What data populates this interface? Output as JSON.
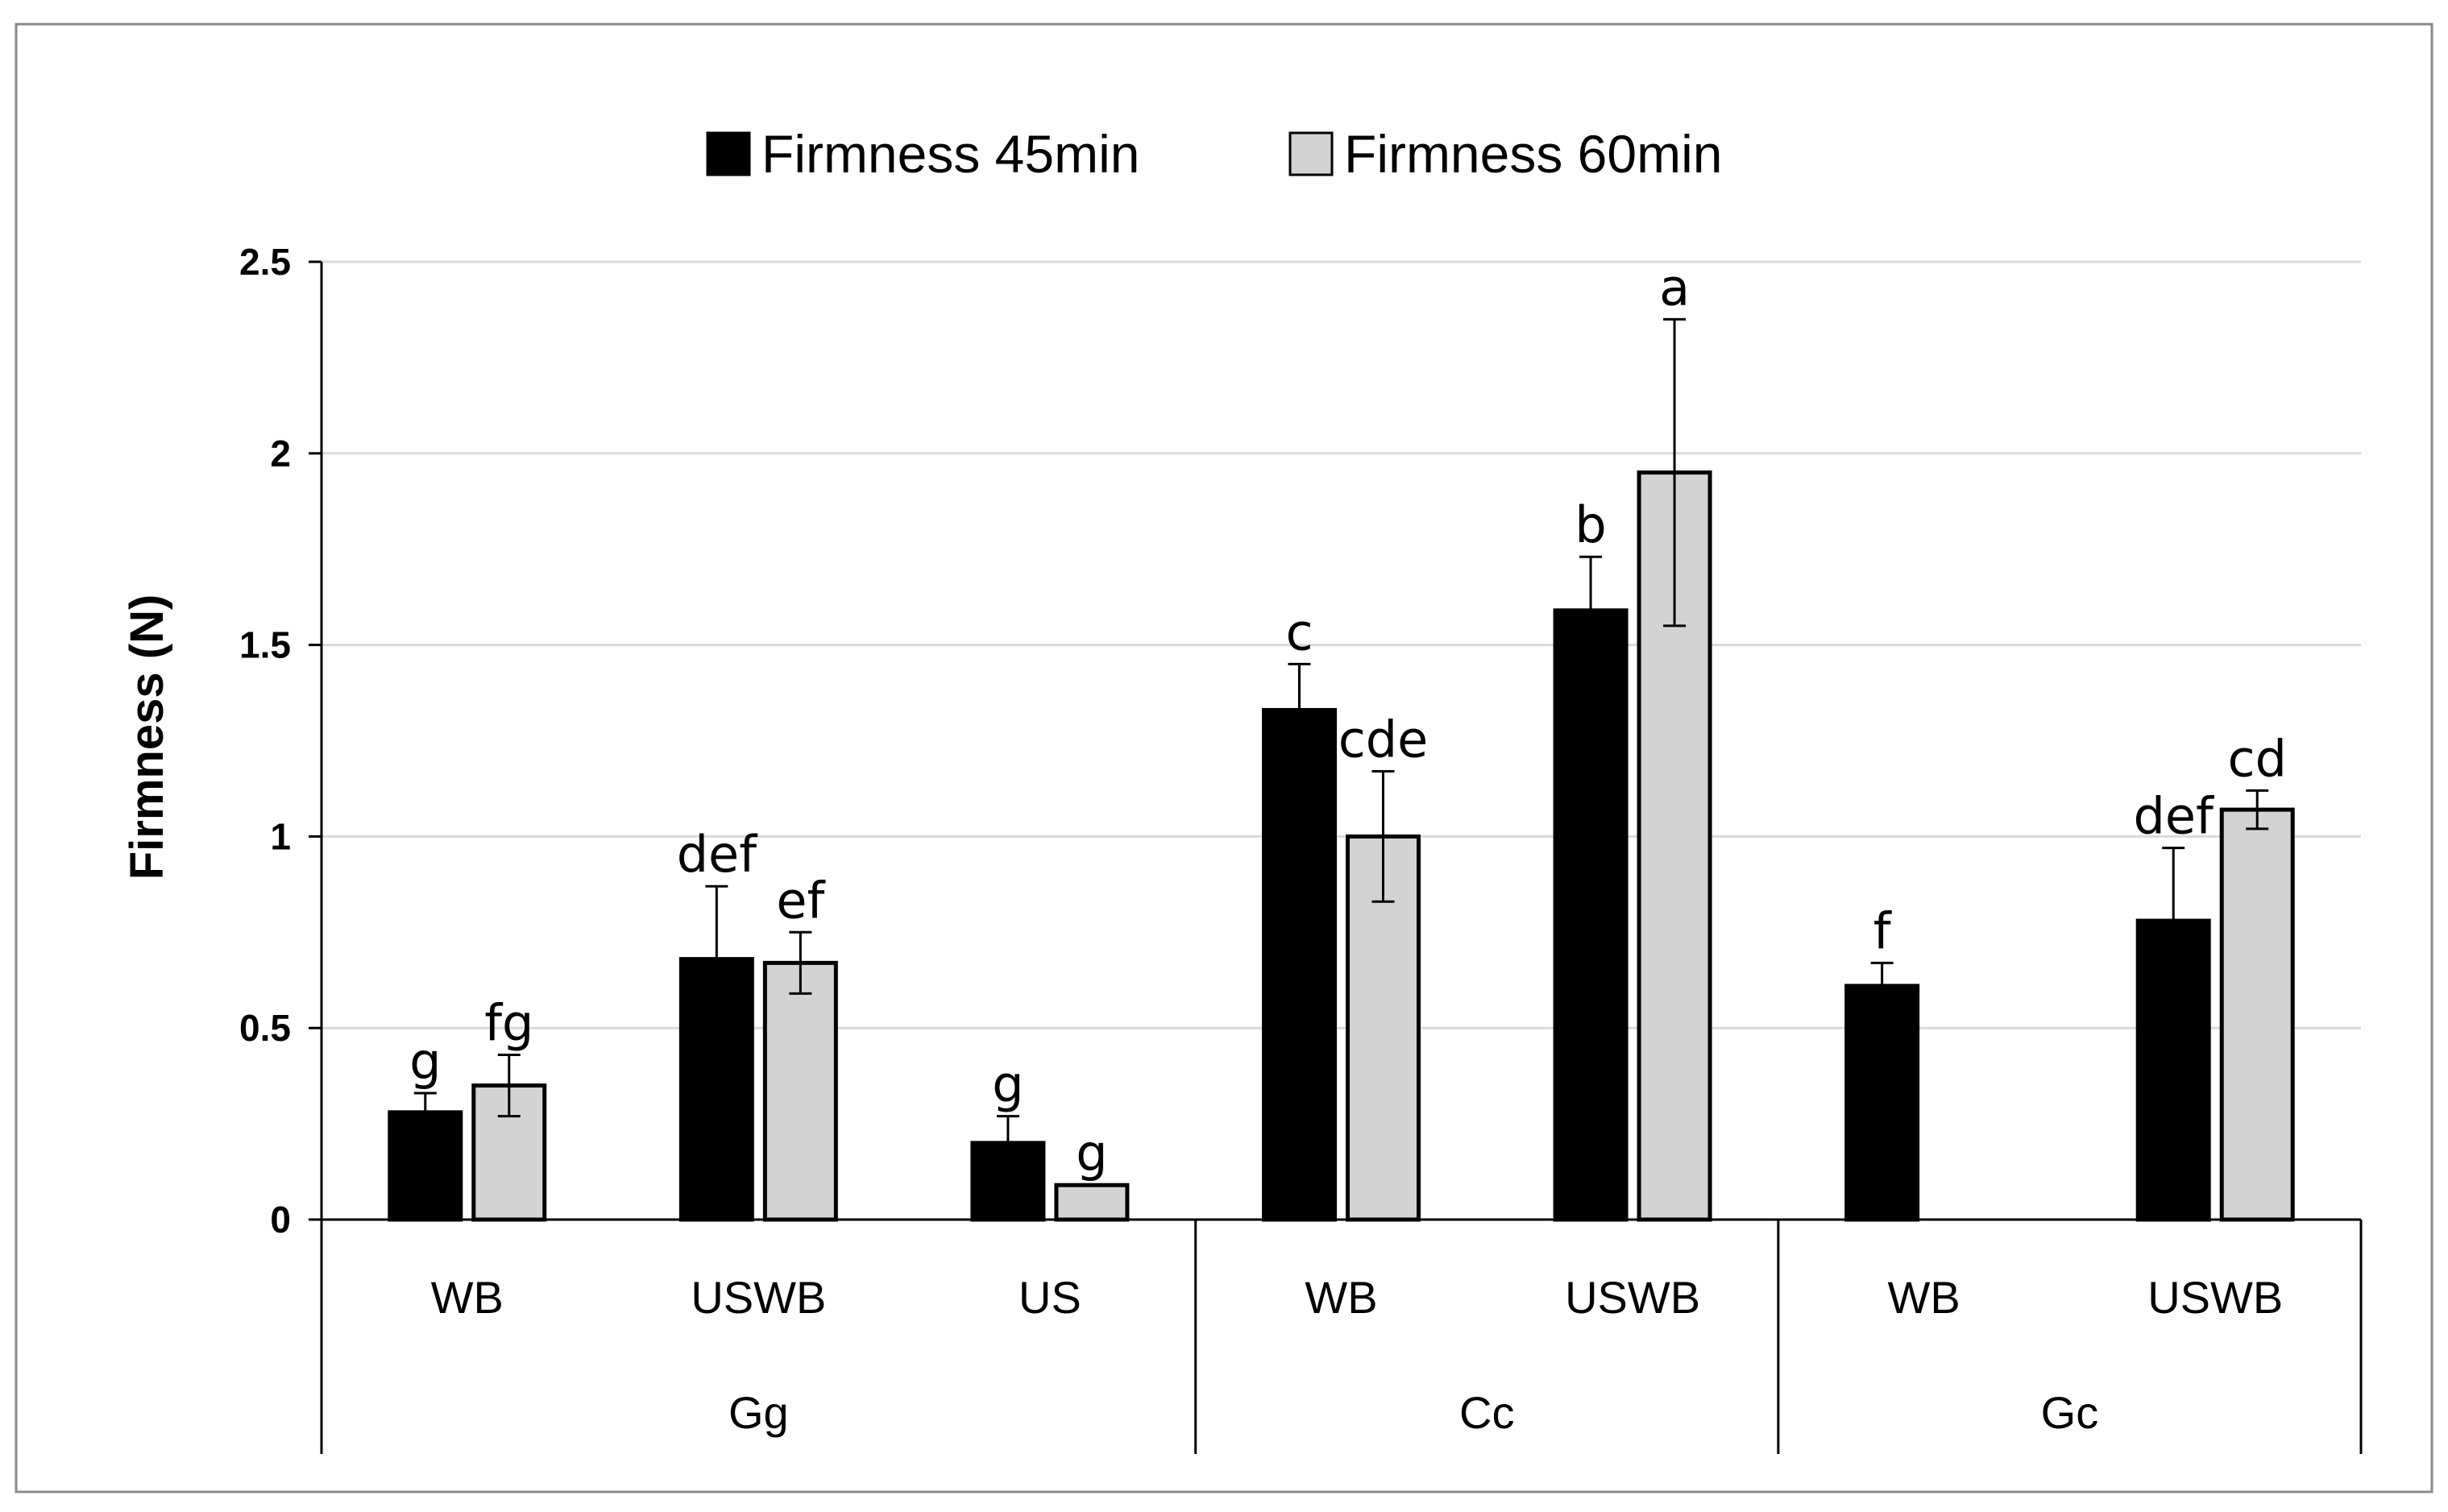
{
  "chart_data": {
    "type": "bar",
    "title": "",
    "xlabel": "",
    "ylabel": "Firmness (N)",
    "ylim": [
      0,
      2.5
    ],
    "yticks": [
      "0",
      "0.5",
      "1",
      "1.5",
      "2",
      "2.5"
    ],
    "ytick_values": [
      0,
      0.5,
      1,
      1.5,
      2,
      2.5
    ],
    "grid": true,
    "legend_position": "top-center",
    "groups": [
      {
        "name": "Gg",
        "categories": [
          "WB",
          "USWB",
          "US"
        ]
      },
      {
        "name": "Cc",
        "categories": [
          "WB",
          "USWB"
        ]
      },
      {
        "name": "Gc",
        "categories": [
          "WB",
          "USWB"
        ]
      }
    ],
    "categories": [
      "WB",
      "USWB",
      "US",
      "WB",
      "USWB",
      "WB",
      "USWB"
    ],
    "series": [
      {
        "name": "Firmness 45min",
        "color": "#000000",
        "values": [
          0.28,
          0.68,
          0.2,
          1.33,
          1.59,
          0.61,
          0.78
        ],
        "errors": [
          0.05,
          0.19,
          0.07,
          0.12,
          0.14,
          0.06,
          0.19
        ],
        "letters": [
          "g",
          "def",
          "g",
          "c",
          "b",
          "f",
          "def"
        ]
      },
      {
        "name": "Firmness 60min",
        "color": "#d3d3d3",
        "values": [
          0.35,
          0.67,
          0.09,
          1.0,
          1.95,
          null,
          1.07
        ],
        "errors": [
          0.08,
          0.08,
          0,
          0.17,
          0.4,
          null,
          0.05
        ],
        "letters": [
          "fg",
          "ef",
          "g",
          "cde",
          "a",
          null,
          "cd"
        ]
      }
    ]
  }
}
